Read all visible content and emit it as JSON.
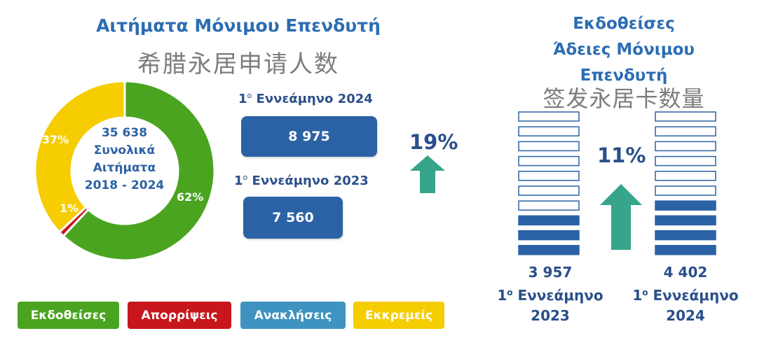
{
  "left": {
    "title": "Αιτήματα Μόνιμου Επενδυτή",
    "subtitle_cn": "希腊永居申请人数",
    "donut_center": [
      "35 638",
      "Συνολικά",
      "Αιτήματα",
      "2018 - 2024"
    ],
    "labels": {
      "issued": "62%",
      "pending": "37%",
      "rejected": "1%"
    },
    "period_2024": {
      "sup": "ο",
      "prefix": "1",
      "text": " Εννεάμηνο 2024"
    },
    "value_2024": "8 975",
    "period_2023": {
      "sup": "ο",
      "prefix": "1",
      "text": " Εννεάμηνο 2023"
    },
    "value_2023": "7 560",
    "growth": "19%",
    "legend": [
      "Εκδοθείσες",
      "Απορρίψεις",
      "Ανακλήσεις",
      "Εκκρεμείς"
    ]
  },
  "right": {
    "title_lines": [
      "Εκδοθείσες",
      "Άδειες Μόνιμου",
      "Επενδυτή"
    ],
    "subtitle_cn": "签发永居卡数量",
    "growth": "11%",
    "left_bar": {
      "value": "3 957",
      "prefix": "1",
      "sup": "ο",
      "period": " Εννεάμηνο",
      "year": "2023"
    },
    "right_bar": {
      "value": "4 402",
      "prefix": "1",
      "sup": "ο",
      "period": " Εννεάμηνο",
      "year": "2024"
    }
  },
  "colors": {
    "issued": "#4aa420",
    "rejected": "#c8161d",
    "revoked": "#3e93c0",
    "pending": "#f5cd00",
    "brand_blue": "#2b62a5",
    "arrow": "#37a58b"
  },
  "chart_data": [
    {
      "type": "pie",
      "title": "Αιτήματα Μόνιμου Επενδυτή",
      "categories": [
        "Εκδοθείσες",
        "Απορρίψεις",
        "Ανακλήσεις",
        "Εκκρεμείς"
      ],
      "values": [
        62,
        1,
        0,
        37
      ],
      "total": 35638
    },
    {
      "type": "bar",
      "categories": [
        "1ο Εννεάμηνο 2023",
        "1ο Εννεάμηνο 2024"
      ],
      "values": [
        7560,
        8975
      ]
    },
    {
      "type": "bar",
      "title": "Εκδοθείσες Άδειες Μόνιμου Επενδυτή",
      "categories": [
        "1ο Εννεάμηνο 2023",
        "1ο Εννεάμηνο 2024"
      ],
      "values": [
        3957,
        4402
      ]
    }
  ]
}
